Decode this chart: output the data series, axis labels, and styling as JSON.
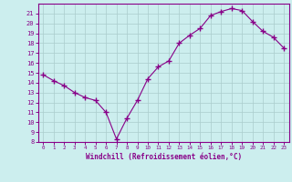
{
  "x": [
    0,
    1,
    2,
    3,
    4,
    5,
    6,
    7,
    8,
    9,
    10,
    11,
    12,
    13,
    14,
    15,
    16,
    17,
    18,
    19,
    20,
    21,
    22,
    23
  ],
  "y": [
    14.8,
    14.2,
    13.7,
    13.0,
    12.5,
    12.2,
    11.0,
    8.3,
    10.4,
    12.2,
    14.4,
    15.6,
    16.2,
    18.0,
    18.8,
    19.5,
    20.8,
    21.2,
    21.5,
    21.3,
    20.2,
    19.2,
    18.6,
    17.5
  ],
  "line_color": "#880088",
  "marker": "+",
  "bg_color": "#cceeee",
  "grid_color": "#aacccc",
  "axis_color": "#880088",
  "tick_color": "#880088",
  "xlabel": "Windchill (Refroidissement éolien,°C)",
  "ylim": [
    8,
    22
  ],
  "xlim": [
    -0.5,
    23.5
  ],
  "yticks": [
    8,
    9,
    10,
    11,
    12,
    13,
    14,
    15,
    16,
    17,
    18,
    19,
    20,
    21
  ],
  "xticks": [
    0,
    1,
    2,
    3,
    4,
    5,
    6,
    7,
    8,
    9,
    10,
    11,
    12,
    13,
    14,
    15,
    16,
    17,
    18,
    19,
    20,
    21,
    22,
    23
  ]
}
